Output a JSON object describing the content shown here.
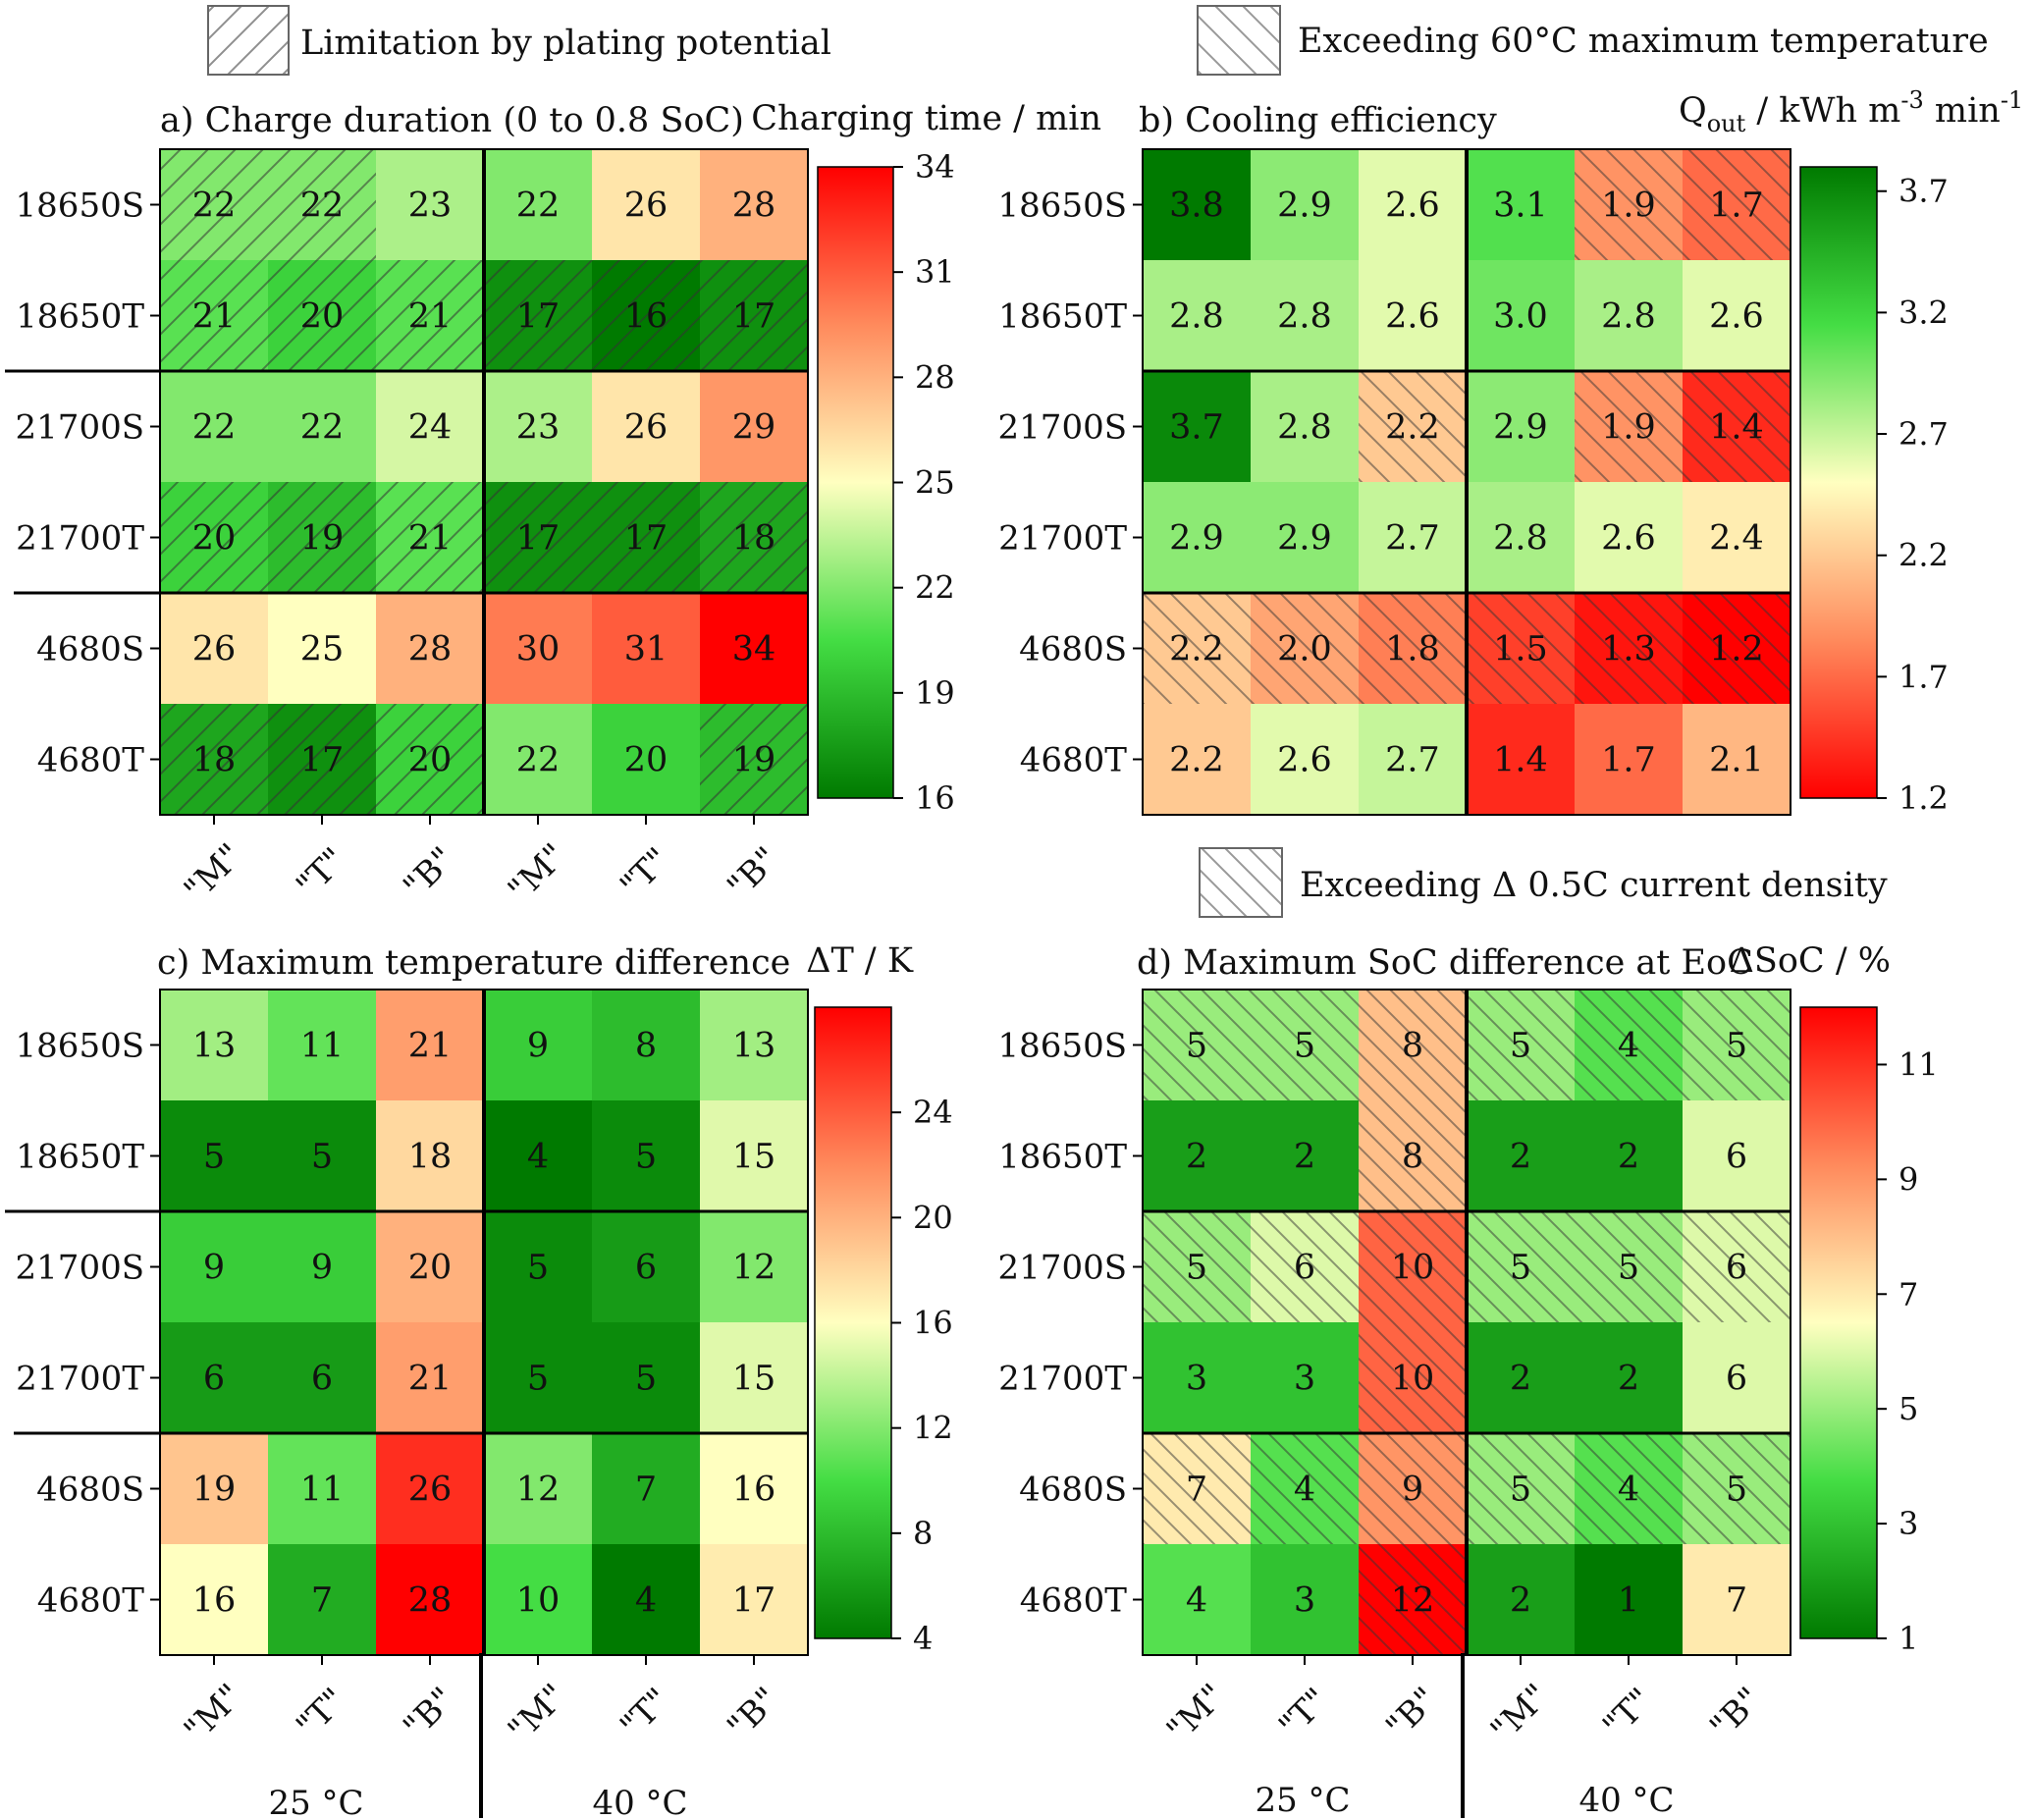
{
  "legends": {
    "plating": "Limitation by plating potential",
    "max_temp": "Exceeding 60°C maximum temperature",
    "current_density": "Exceeding Δ 0.5C current density"
  },
  "temperature_labels": [
    "25 °C",
    "40 °C"
  ],
  "colors": {
    "green": "#007a00",
    "light_green": "#90ff90",
    "yellow": "#ffffc0",
    "orange": "#ffb070",
    "red": "#ff0000"
  },
  "chart_data": [
    {
      "id": "a",
      "type": "heatmap",
      "title": "a) Charge duration (0 to 0.8 SoC)",
      "colorbar_label": "Charging time / min",
      "rows": [
        "18650S",
        "18650T",
        "21700S",
        "21700T",
        "4680S",
        "4680T"
      ],
      "columns": [
        "\"M\"",
        "\"T\"",
        "\"B\"",
        "\"M\"",
        "\"T\"",
        "\"B\""
      ],
      "column_groups": [
        "25 °C",
        "40 °C"
      ],
      "values": [
        [
          22,
          22,
          23,
          22,
          26,
          28
        ],
        [
          21,
          20,
          21,
          17,
          16,
          17
        ],
        [
          22,
          22,
          24,
          23,
          26,
          29
        ],
        [
          20,
          19,
          21,
          17,
          17,
          18
        ],
        [
          26,
          25,
          28,
          30,
          31,
          34
        ],
        [
          18,
          17,
          20,
          22,
          20,
          19
        ]
      ],
      "hatch_pattern": "plating",
      "hatched": [
        [
          1,
          1,
          0,
          0,
          0,
          0
        ],
        [
          1,
          1,
          1,
          1,
          1,
          1
        ],
        [
          0,
          0,
          0,
          0,
          0,
          0
        ],
        [
          1,
          1,
          1,
          1,
          1,
          1
        ],
        [
          0,
          0,
          0,
          0,
          0,
          0
        ],
        [
          1,
          1,
          1,
          0,
          0,
          1
        ]
      ],
      "range": [
        16,
        34
      ],
      "ticks": [
        16,
        19,
        22,
        25,
        28,
        31,
        34
      ],
      "reverse_colormap": false
    },
    {
      "id": "b",
      "type": "heatmap",
      "title": "b) Cooling efficiency",
      "colorbar_label": "Q",
      "colorbar_label_sub": "out",
      "colorbar_label_rest": " / kWh m",
      "colorbar_label_sup1": "-3",
      "colorbar_label_rest2": " min",
      "colorbar_label_sup2": "-1",
      "rows": [
        "18650S",
        "18650T",
        "21700S",
        "21700T",
        "4680S",
        "4680T"
      ],
      "columns": [
        "\"M\"",
        "\"T\"",
        "\"B\"",
        "\"M\"",
        "\"T\"",
        "\"B\""
      ],
      "column_groups": [
        "25 °C",
        "40 °C"
      ],
      "values": [
        [
          "3.8",
          "2.9",
          "2.6",
          "3.1",
          "1.9",
          "1.7"
        ],
        [
          "2.8",
          "2.8",
          "2.6",
          "3.0",
          "2.8",
          "2.6"
        ],
        [
          "3.7",
          "2.8",
          "2.2",
          "2.9",
          "1.9",
          "1.4"
        ],
        [
          "2.9",
          "2.9",
          "2.7",
          "2.8",
          "2.6",
          "2.4"
        ],
        [
          "2.2",
          "2.0",
          "1.8",
          "1.5",
          "1.3",
          "1.2"
        ],
        [
          "2.2",
          "2.6",
          "2.7",
          "1.4",
          "1.7",
          "2.1"
        ]
      ],
      "hatch_pattern": "max_temp",
      "hatched": [
        [
          0,
          0,
          0,
          0,
          1,
          1
        ],
        [
          0,
          0,
          0,
          0,
          0,
          0
        ],
        [
          0,
          0,
          1,
          0,
          1,
          1
        ],
        [
          0,
          0,
          0,
          0,
          0,
          0
        ],
        [
          1,
          1,
          1,
          1,
          1,
          1
        ],
        [
          0,
          0,
          0,
          0,
          0,
          0
        ]
      ],
      "range": [
        1.2,
        3.8
      ],
      "ticks": [
        1.2,
        1.7,
        2.2,
        2.7,
        3.2,
        3.7
      ],
      "reverse_colormap": true
    },
    {
      "id": "c",
      "type": "heatmap",
      "title": "c) Maximum temperature difference",
      "colorbar_label": "ΔT / K",
      "rows": [
        "18650S",
        "18650T",
        "21700S",
        "21700T",
        "4680S",
        "4680T"
      ],
      "columns": [
        "\"M\"",
        "\"T\"",
        "\"B\"",
        "\"M\"",
        "\"T\"",
        "\"B\""
      ],
      "column_groups": [
        "25 °C",
        "40 °C"
      ],
      "values": [
        [
          13,
          11,
          21,
          9,
          8,
          13
        ],
        [
          5,
          5,
          18,
          4,
          5,
          15
        ],
        [
          9,
          9,
          20,
          5,
          6,
          12
        ],
        [
          6,
          6,
          21,
          5,
          5,
          15
        ],
        [
          19,
          11,
          26,
          12,
          7,
          16
        ],
        [
          16,
          7,
          28,
          10,
          4,
          17
        ]
      ],
      "hatch_pattern": "none",
      "hatched": [
        [
          0,
          0,
          0,
          0,
          0,
          0
        ],
        [
          0,
          0,
          0,
          0,
          0,
          0
        ],
        [
          0,
          0,
          0,
          0,
          0,
          0
        ],
        [
          0,
          0,
          0,
          0,
          0,
          0
        ],
        [
          0,
          0,
          0,
          0,
          0,
          0
        ],
        [
          0,
          0,
          0,
          0,
          0,
          0
        ]
      ],
      "range": [
        4,
        28
      ],
      "ticks": [
        4,
        8,
        12,
        16,
        20,
        24
      ],
      "reverse_colormap": false
    },
    {
      "id": "d",
      "type": "heatmap",
      "title": "d) Maximum SoC difference at EoC",
      "colorbar_label": "ΔSoC / %",
      "rows": [
        "18650S",
        "18650T",
        "21700S",
        "21700T",
        "4680S",
        "4680T"
      ],
      "columns": [
        "\"M\"",
        "\"T\"",
        "\"B\"",
        "\"M\"",
        "\"T\"",
        "\"B\""
      ],
      "column_groups": [
        "25 °C",
        "40 °C"
      ],
      "values": [
        [
          5,
          5,
          8,
          5,
          4,
          5
        ],
        [
          2,
          2,
          8,
          2,
          2,
          6
        ],
        [
          5,
          6,
          10,
          5,
          5,
          6
        ],
        [
          3,
          3,
          10,
          2,
          2,
          6
        ],
        [
          7,
          4,
          9,
          5,
          4,
          5
        ],
        [
          4,
          3,
          12,
          2,
          1,
          7
        ]
      ],
      "hatch_pattern": "current_density",
      "hatched": [
        [
          1,
          1,
          1,
          1,
          1,
          1
        ],
        [
          0,
          0,
          1,
          0,
          0,
          0
        ],
        [
          1,
          1,
          1,
          1,
          1,
          1
        ],
        [
          0,
          0,
          1,
          0,
          0,
          0
        ],
        [
          1,
          1,
          1,
          1,
          1,
          1
        ],
        [
          0,
          0,
          1,
          0,
          0,
          0
        ]
      ],
      "range": [
        1,
        12
      ],
      "ticks": [
        1,
        3,
        5,
        7,
        9,
        11
      ],
      "reverse_colormap": false
    }
  ]
}
